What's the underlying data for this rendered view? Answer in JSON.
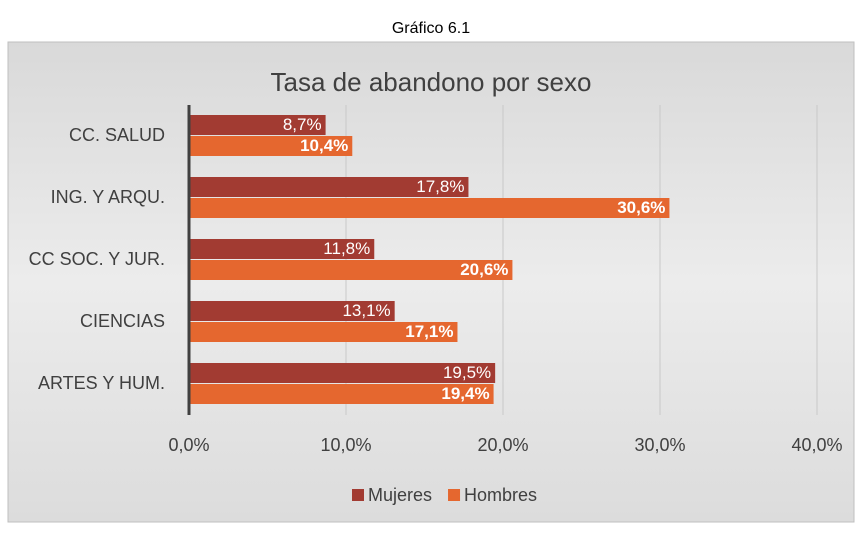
{
  "caption": "Gráfico 6.1",
  "chart_data": {
    "type": "barh",
    "title": "Tasa de abandono por sexo",
    "categories": [
      "CC. SALUD",
      "ING. Y ARQU.",
      "CC SOC. Y JUR.",
      "CIENCIAS",
      "ARTES Y HUM."
    ],
    "series": [
      {
        "name": "Mujeres",
        "color": "#a23b32",
        "values": [
          8.7,
          17.8,
          11.8,
          13.1,
          19.5
        ],
        "value_labels": [
          "8,7%",
          "17,8%",
          "11,8%",
          "13,1%",
          "19,5%"
        ]
      },
      {
        "name": "Hombres",
        "color": "#e5672f",
        "values": [
          10.4,
          30.6,
          20.6,
          17.1,
          19.4
        ],
        "value_labels": [
          "10,4%",
          "30,6%",
          "20,6%",
          "17,1%",
          "19,4%"
        ]
      }
    ],
    "xlim": [
      0,
      40
    ],
    "xticks": [
      {
        "value": 0,
        "label": "0,0%"
      },
      {
        "value": 10,
        "label": "10,0%"
      },
      {
        "value": 20,
        "label": "20,0%"
      },
      {
        "value": 30,
        "label": "30,0%"
      },
      {
        "value": 40,
        "label": "40,0%"
      }
    ],
    "grid": true,
    "legend": "bottom"
  }
}
